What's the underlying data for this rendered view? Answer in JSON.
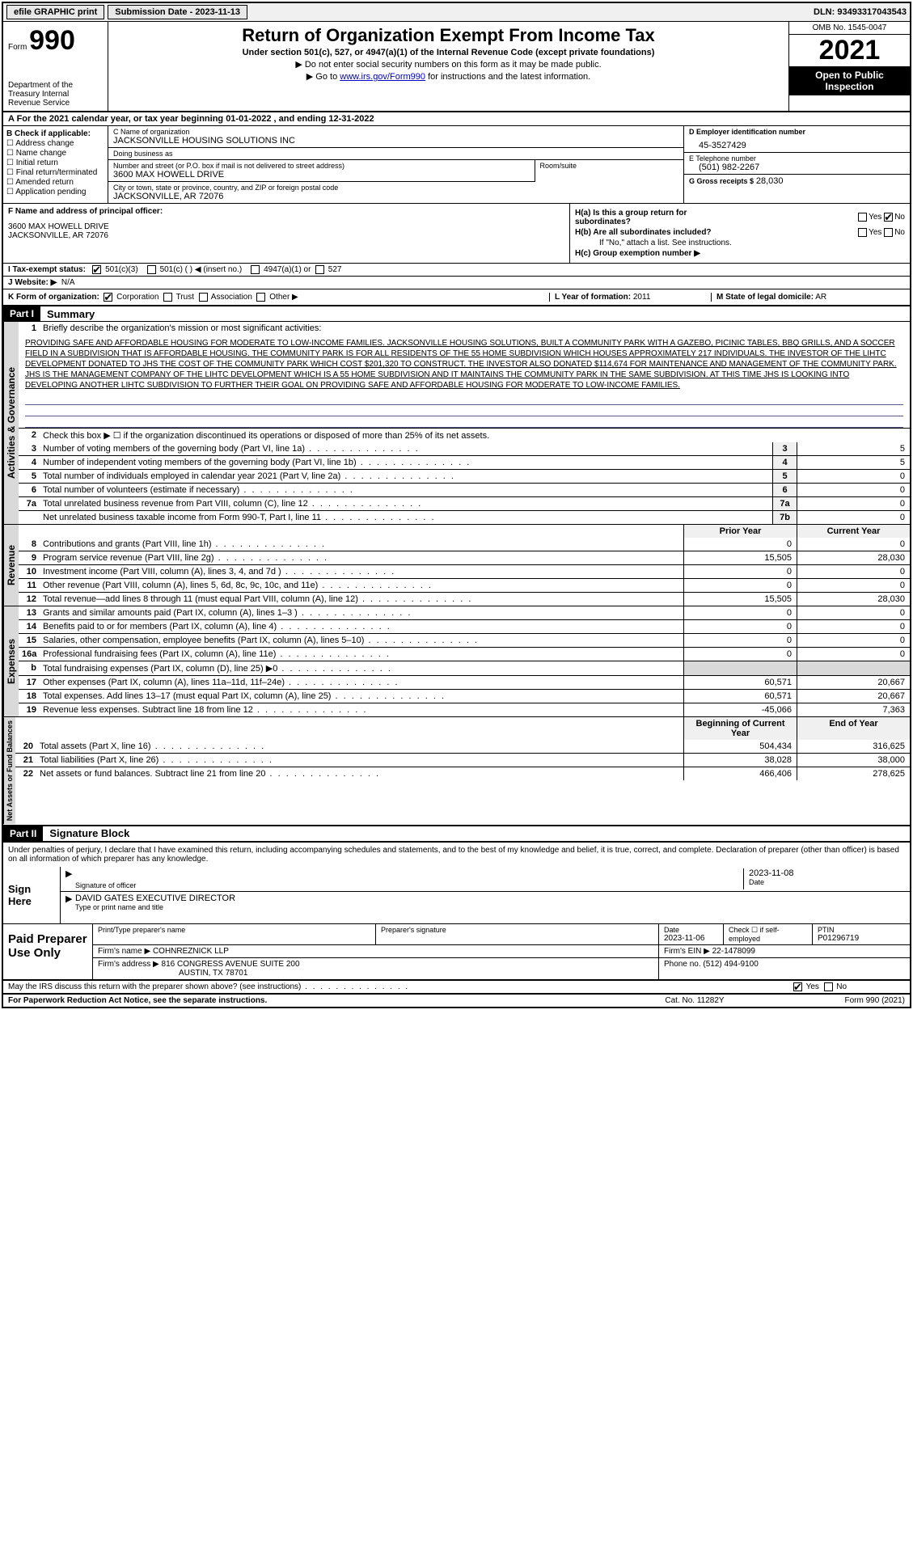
{
  "topbar": {
    "efile": "efile GRAPHIC print",
    "submission": "Submission Date - 2023-11-13",
    "dln": "DLN: 93493317043543"
  },
  "header": {
    "form_label": "Form",
    "form_number": "990",
    "dept": "Department of the Treasury Internal Revenue Service",
    "title": "Return of Organization Exempt From Income Tax",
    "sub1": "Under section 501(c), 527, or 4947(a)(1) of the Internal Revenue Code (except private foundations)",
    "sub2": "▶ Do not enter social security numbers on this form as it may be made public.",
    "sub3_pre": "▶ Go to ",
    "sub3_link": "www.irs.gov/Form990",
    "sub3_post": " for instructions and the latest information.",
    "omb": "OMB No. 1545-0047",
    "year": "2021",
    "inspection": "Open to Public Inspection"
  },
  "a": "A For the 2021 calendar year, or tax year beginning 01-01-2022    , and ending 12-31-2022",
  "b": {
    "label": "B Check if applicable:",
    "opts": [
      "Address change",
      "Name change",
      "Initial return",
      "Final return/terminated",
      "Amended return",
      "Application pending"
    ]
  },
  "c": {
    "name_lbl": "C Name of organization",
    "name": "JACKSONVILLE HOUSING SOLUTIONS INC",
    "dba_lbl": "Doing business as",
    "dba": "",
    "addr_lbl": "Number and street (or P.O. box if mail is not delivered to street address)",
    "addr": "3600 MAX HOWELL DRIVE",
    "suite_lbl": "Room/suite",
    "city_lbl": "City or town, state or province, country, and ZIP or foreign postal code",
    "city": "JACKSONVILLE, AR  72076"
  },
  "d": {
    "lbl": "D Employer identification number",
    "val": "45-3527429"
  },
  "e": {
    "lbl": "E Telephone number",
    "val": "(501) 982-2267"
  },
  "g": {
    "lbl": "G Gross receipts $",
    "val": "28,030"
  },
  "f": {
    "lbl": "F  Name and address of principal officer:",
    "line1": "3600 MAX HOWELL DRIVE",
    "line2": "JACKSONVILLE, AR  72076"
  },
  "h": {
    "a_lbl": "H(a)  Is this a group return for subordinates?",
    "b_lbl": "H(b)  Are all subordinates included?",
    "note": "If \"No,\" attach a list. See instructions.",
    "c_lbl": "H(c)  Group exemption number ▶",
    "yes": "Yes",
    "no": "No"
  },
  "i": {
    "lbl": "I   Tax-exempt status:",
    "o1": "501(c)(3)",
    "o2": "501(c) (  ) ◀ (insert no.)",
    "o3": "4947(a)(1) or",
    "o4": "527"
  },
  "j": {
    "lbl": "J   Website: ▶",
    "val": "N/A"
  },
  "k": {
    "lbl": "K Form of organization:",
    "o1": "Corporation",
    "o2": "Trust",
    "o3": "Association",
    "o4": "Other ▶",
    "l_lbl": "L Year of formation:",
    "l_val": "2011",
    "m_lbl": "M State of legal domicile:",
    "m_val": "AR"
  },
  "part1": {
    "hdr": "Part I",
    "title": "Summary"
  },
  "summary": {
    "l1_lbl": "Briefly describe the organization's mission or most significant activities:",
    "mission": "PROVIDING SAFE AND AFFORDABLE HOUSING FOR MODERATE TO LOW-INCOME FAMILIES. JACKSONVILLE HOUSING SOLUTIONS, BUILT A COMMUNITY PARK WITH A GAZEBO, PICINIC TABLES, BBQ GRILLS, AND A SOCCER FIELD IN A SUBDIVISION THAT IS AFFORDABLE HOUSING. THE COMMUNITY PARK IS FOR ALL RESIDENTS OF THE 55 HOME SUBDIVISION WHICH HOUSES APPROXIMATELY 217 INDIVIDUALS. THE INVESTOR OF THE LIHTC DEVELOPMENT DONATED TO JHS THE COST OF THE COMMUNITY PARK WHICH COST $201,320 TO CONSTRUCT. THE INVESTOR ALSO DONATED $114,674 FOR MAINTENANCE AND MANAGEMENT OF THE COMMUNITY PARK. JHS IS THE MANAGEMENT COMPANY OF THE LIHTC DEVELOPMENT WHICH IS A 55 HOME SUBDIVISION AND IT MAINTAINS THE COMMUNITY PARK IN THE SAME SUBDIVISION. AT THIS TIME JHS IS LOOKING INTO DEVELOPING ANOTHER LIHTC SUBDIVISION TO FURTHER THEIR GOAL ON PROVIDING SAFE AND AFFORDABLE HOUSING FOR MODERATE TO LOW-INCOME FAMILIES.",
    "l2": "Check this box ▶ ☐ if the organization discontinued its operations or disposed of more than 25% of its net assets.",
    "rows": [
      {
        "n": "3",
        "d": "Number of voting members of the governing body (Part VI, line 1a)",
        "box": "3",
        "v": "5"
      },
      {
        "n": "4",
        "d": "Number of independent voting members of the governing body (Part VI, line 1b)",
        "box": "4",
        "v": "5"
      },
      {
        "n": "5",
        "d": "Total number of individuals employed in calendar year 2021 (Part V, line 2a)",
        "box": "5",
        "v": "0"
      },
      {
        "n": "6",
        "d": "Total number of volunteers (estimate if necessary)",
        "box": "6",
        "v": "0"
      },
      {
        "n": "7a",
        "d": "Total unrelated business revenue from Part VIII, column (C), line 12",
        "box": "7a",
        "v": "0"
      },
      {
        "n": "",
        "d": "Net unrelated business taxable income from Form 990-T, Part I, line 11",
        "box": "7b",
        "v": "0"
      }
    ]
  },
  "vtabs": {
    "ag": "Activities & Governance",
    "rev": "Revenue",
    "exp": "Expenses",
    "net": "Net Assets or Fund Balances"
  },
  "col_hdrs": {
    "prior": "Prior Year",
    "current": "Current Year",
    "beg": "Beginning of Current Year",
    "end": "End of Year"
  },
  "revenue": [
    {
      "n": "8",
      "d": "Contributions and grants (Part VIII, line 1h)",
      "p": "0",
      "c": "0"
    },
    {
      "n": "9",
      "d": "Program service revenue (Part VIII, line 2g)",
      "p": "15,505",
      "c": "28,030"
    },
    {
      "n": "10",
      "d": "Investment income (Part VIII, column (A), lines 3, 4, and 7d )",
      "p": "0",
      "c": "0"
    },
    {
      "n": "11",
      "d": "Other revenue (Part VIII, column (A), lines 5, 6d, 8c, 9c, 10c, and 11e)",
      "p": "0",
      "c": "0"
    },
    {
      "n": "12",
      "d": "Total revenue—add lines 8 through 11 (must equal Part VIII, column (A), line 12)",
      "p": "15,505",
      "c": "28,030"
    }
  ],
  "expenses": [
    {
      "n": "13",
      "d": "Grants and similar amounts paid (Part IX, column (A), lines 1–3 )",
      "p": "0",
      "c": "0"
    },
    {
      "n": "14",
      "d": "Benefits paid to or for members (Part IX, column (A), line 4)",
      "p": "0",
      "c": "0"
    },
    {
      "n": "15",
      "d": "Salaries, other compensation, employee benefits (Part IX, column (A), lines 5–10)",
      "p": "0",
      "c": "0"
    },
    {
      "n": "16a",
      "d": "Professional fundraising fees (Part IX, column (A), line 11e)",
      "p": "0",
      "c": "0"
    },
    {
      "n": "b",
      "d": "Total fundraising expenses (Part IX, column (D), line 25) ▶0",
      "p": "",
      "c": "",
      "shade": true
    },
    {
      "n": "17",
      "d": "Other expenses (Part IX, column (A), lines 11a–11d, 11f–24e)",
      "p": "60,571",
      "c": "20,667"
    },
    {
      "n": "18",
      "d": "Total expenses. Add lines 13–17 (must equal Part IX, column (A), line 25)",
      "p": "60,571",
      "c": "20,667"
    },
    {
      "n": "19",
      "d": "Revenue less expenses. Subtract line 18 from line 12",
      "p": "-45,066",
      "c": "7,363"
    }
  ],
  "netassets": [
    {
      "n": "20",
      "d": "Total assets (Part X, line 16)",
      "p": "504,434",
      "c": "316,625"
    },
    {
      "n": "21",
      "d": "Total liabilities (Part X, line 26)",
      "p": "38,028",
      "c": "38,000"
    },
    {
      "n": "22",
      "d": "Net assets or fund balances. Subtract line 21 from line 20",
      "p": "466,406",
      "c": "278,625"
    }
  ],
  "part2": {
    "hdr": "Part II",
    "title": "Signature Block"
  },
  "sig": {
    "perjury": "Under penalties of perjury, I declare that I have examined this return, including accompanying schedules and statements, and to the best of my knowledge and belief, it is true, correct, and complete. Declaration of preparer (other than officer) is based on all information of which preparer has any knowledge.",
    "sign_here": "Sign Here",
    "sig_lbl": "Signature of officer",
    "date_lbl": "Date",
    "date_val": "2023-11-08",
    "name": "DAVID GATES EXECUTIVE DIRECTOR",
    "name_lbl": "Type or print name and title"
  },
  "prep": {
    "title": "Paid Preparer Use Only",
    "h1": "Print/Type preparer's name",
    "h2": "Preparer's signature",
    "h3": "Date",
    "h3v": "2023-11-06",
    "h4": "Check ☐ if self-employed",
    "h5": "PTIN",
    "h5v": "P01296719",
    "firm_lbl": "Firm's name    ▶",
    "firm": "COHNREZNICK LLP",
    "ein_lbl": "Firm's EIN ▶",
    "ein": "22-1478099",
    "addr_lbl": "Firm's address ▶",
    "addr1": "816 CONGRESS AVENUE SUITE 200",
    "addr2": "AUSTIN, TX  78701",
    "phone_lbl": "Phone no.",
    "phone": "(512) 494-9100",
    "discuss": "May the IRS discuss this return with the preparer shown above? (see instructions)",
    "yes": "Yes",
    "no": "No"
  },
  "footer": {
    "l": "For Paperwork Reduction Act Notice, see the separate instructions.",
    "m": "Cat. No. 11282Y",
    "r": "Form 990 (2021)"
  }
}
